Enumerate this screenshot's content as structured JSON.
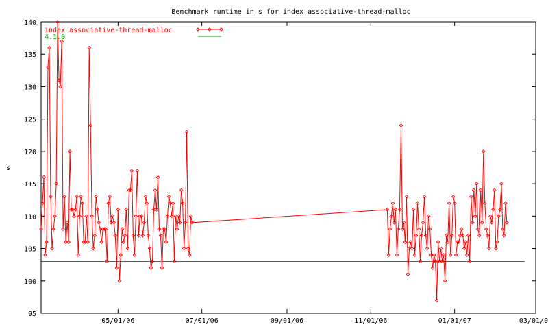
{
  "chart_data": {
    "type": "line",
    "title": "Benchmark runtime in s for index associative-thread-malloc",
    "xlabel": "",
    "ylabel": "s",
    "ylim": [
      95,
      140
    ],
    "xlim": [
      "2006-03-06",
      "2007-03-01"
    ],
    "y_ticks": [
      "95",
      "100",
      "105",
      "110",
      "115",
      "120",
      "125",
      "130",
      "135",
      "140"
    ],
    "x_ticks": [
      {
        "date": "2006-05-01",
        "label": "05/01/06"
      },
      {
        "date": "2006-07-01",
        "label": "07/01/06"
      },
      {
        "date": "2006-09-01",
        "label": "09/01/06"
      },
      {
        "date": "2006-11-01",
        "label": "11/01/06"
      },
      {
        "date": "2007-01-01",
        "label": "01/01/07"
      },
      {
        "date": "2007-03-01",
        "label": "03/01/07"
      }
    ],
    "grid": false,
    "legend_position": "top-left",
    "series": [
      {
        "name": "index associative-thread-malloc",
        "color": "#ff0000",
        "marker": "diamond",
        "points": [
          [
            "2006-03-06",
            108
          ],
          [
            "2006-03-07",
            112
          ],
          [
            "2006-03-08",
            116
          ],
          [
            "2006-03-09",
            104
          ],
          [
            "2006-03-10",
            106
          ],
          [
            "2006-03-11",
            133
          ],
          [
            "2006-03-12",
            136
          ],
          [
            "2006-03-13",
            113
          ],
          [
            "2006-03-14",
            105
          ],
          [
            "2006-03-15",
            108
          ],
          [
            "2006-03-16",
            110
          ],
          [
            "2006-03-17",
            115
          ],
          [
            "2006-03-18",
            140
          ],
          [
            "2006-03-19",
            131
          ],
          [
            "2006-03-20",
            130
          ],
          [
            "2006-03-21",
            137
          ],
          [
            "2006-03-22",
            108
          ],
          [
            "2006-03-23",
            113
          ],
          [
            "2006-03-24",
            106
          ],
          [
            "2006-03-25",
            109
          ],
          [
            "2006-03-26",
            106
          ],
          [
            "2006-03-27",
            120
          ],
          [
            "2006-03-28",
            111
          ],
          [
            "2006-03-29",
            111
          ],
          [
            "2006-03-30",
            110
          ],
          [
            "2006-03-31",
            111
          ],
          [
            "2006-04-01",
            113
          ],
          [
            "2006-04-02",
            104
          ],
          [
            "2006-04-03",
            110
          ],
          [
            "2006-04-04",
            113
          ],
          [
            "2006-04-05",
            112
          ],
          [
            "2006-04-06",
            106
          ],
          [
            "2006-04-07",
            106
          ],
          [
            "2006-04-08",
            110
          ],
          [
            "2006-04-09",
            106
          ],
          [
            "2006-04-10",
            136
          ],
          [
            "2006-04-11",
            124
          ],
          [
            "2006-04-12",
            110
          ],
          [
            "2006-04-13",
            105
          ],
          [
            "2006-04-14",
            107
          ],
          [
            "2006-04-15",
            113
          ],
          [
            "2006-04-16",
            111
          ],
          [
            "2006-04-17",
            109
          ],
          [
            "2006-04-18",
            108
          ],
          [
            "2006-04-19",
            106
          ],
          [
            "2006-04-20",
            108
          ],
          [
            "2006-04-21",
            108
          ],
          [
            "2006-04-22",
            108
          ],
          [
            "2006-04-23",
            103
          ],
          [
            "2006-04-24",
            112
          ],
          [
            "2006-04-25",
            113
          ],
          [
            "2006-04-26",
            109
          ],
          [
            "2006-04-27",
            110
          ],
          [
            "2006-04-28",
            109
          ],
          [
            "2006-04-29",
            107
          ],
          [
            "2006-04-30",
            102
          ],
          [
            "2006-05-01",
            111
          ],
          [
            "2006-05-02",
            100
          ],
          [
            "2006-05-03",
            104
          ],
          [
            "2006-05-04",
            108
          ],
          [
            "2006-05-05",
            106
          ],
          [
            "2006-05-06",
            107
          ],
          [
            "2006-05-07",
            111
          ],
          [
            "2006-05-08",
            105
          ],
          [
            "2006-05-09",
            114
          ],
          [
            "2006-05-10",
            114
          ],
          [
            "2006-05-11",
            117
          ],
          [
            "2006-05-12",
            107
          ],
          [
            "2006-05-13",
            104
          ],
          [
            "2006-05-14",
            110
          ],
          [
            "2006-05-15",
            117
          ],
          [
            "2006-05-16",
            107
          ],
          [
            "2006-05-17",
            110
          ],
          [
            "2006-05-18",
            110
          ],
          [
            "2006-05-19",
            107
          ],
          [
            "2006-05-20",
            109
          ],
          [
            "2006-05-21",
            113
          ],
          [
            "2006-05-22",
            112
          ],
          [
            "2006-05-23",
            107
          ],
          [
            "2006-05-24",
            105
          ],
          [
            "2006-05-25",
            102
          ],
          [
            "2006-05-26",
            103
          ],
          [
            "2006-05-27",
            111
          ],
          [
            "2006-05-28",
            114
          ],
          [
            "2006-05-29",
            111
          ],
          [
            "2006-05-30",
            116
          ],
          [
            "2006-05-31",
            108
          ],
          [
            "2006-06-01",
            107
          ],
          [
            "2006-06-02",
            102
          ],
          [
            "2006-06-03",
            108
          ],
          [
            "2006-06-04",
            108
          ],
          [
            "2006-06-05",
            106
          ],
          [
            "2006-06-06",
            110
          ],
          [
            "2006-06-07",
            113
          ],
          [
            "2006-06-08",
            112
          ],
          [
            "2006-06-09",
            110
          ],
          [
            "2006-06-10",
            112
          ],
          [
            "2006-06-11",
            103
          ],
          [
            "2006-06-12",
            110
          ],
          [
            "2006-06-13",
            108
          ],
          [
            "2006-06-14",
            110
          ],
          [
            "2006-06-15",
            109
          ],
          [
            "2006-06-16",
            114
          ],
          [
            "2006-06-17",
            112
          ],
          [
            "2006-06-18",
            105
          ],
          [
            "2006-06-19",
            109
          ],
          [
            "2006-06-20",
            123
          ],
          [
            "2006-06-21",
            105
          ],
          [
            "2006-06-22",
            104
          ],
          [
            "2006-06-23",
            110
          ],
          [
            "2006-06-24",
            109
          ],
          [
            "2006-11-13",
            111
          ],
          [
            "2006-11-14",
            104
          ],
          [
            "2006-11-15",
            108
          ],
          [
            "2006-11-16",
            110
          ],
          [
            "2006-11-17",
            112
          ],
          [
            "2006-11-18",
            109
          ],
          [
            "2006-11-19",
            111
          ],
          [
            "2006-11-20",
            104
          ],
          [
            "2006-11-21",
            108
          ],
          [
            "2006-11-22",
            111
          ],
          [
            "2006-11-23",
            124
          ],
          [
            "2006-11-24",
            108
          ],
          [
            "2006-11-25",
            109
          ],
          [
            "2006-11-26",
            106
          ],
          [
            "2006-11-27",
            113
          ],
          [
            "2006-11-28",
            101
          ],
          [
            "2006-11-29",
            105
          ],
          [
            "2006-11-30",
            106
          ],
          [
            "2006-12-01",
            105
          ],
          [
            "2006-12-02",
            111
          ],
          [
            "2006-12-03",
            104
          ],
          [
            "2006-12-04",
            107
          ],
          [
            "2006-12-05",
            112
          ],
          [
            "2006-12-06",
            108
          ],
          [
            "2006-12-07",
            103
          ],
          [
            "2006-12-08",
            107
          ],
          [
            "2006-12-09",
            109
          ],
          [
            "2006-12-10",
            113
          ],
          [
            "2006-12-11",
            107
          ],
          [
            "2006-12-12",
            105
          ],
          [
            "2006-12-13",
            110
          ],
          [
            "2006-12-14",
            108
          ],
          [
            "2006-12-15",
            104
          ],
          [
            "2006-12-16",
            102
          ],
          [
            "2006-12-17",
            104
          ],
          [
            "2006-12-18",
            103
          ],
          [
            "2006-12-19",
            97
          ],
          [
            "2006-12-20",
            106
          ],
          [
            "2006-12-21",
            103
          ],
          [
            "2006-12-22",
            105
          ],
          [
            "2006-12-23",
            103
          ],
          [
            "2006-12-24",
            104
          ],
          [
            "2006-12-25",
            100
          ],
          [
            "2006-12-26",
            107
          ],
          [
            "2006-12-27",
            106
          ],
          [
            "2006-12-28",
            112
          ],
          [
            "2006-12-29",
            104
          ],
          [
            "2006-12-30",
            107
          ],
          [
            "2006-12-31",
            113
          ],
          [
            "2007-01-01",
            112
          ],
          [
            "2007-01-02",
            104
          ],
          [
            "2007-01-03",
            106
          ],
          [
            "2007-01-04",
            106
          ],
          [
            "2007-01-05",
            107
          ],
          [
            "2007-01-06",
            108
          ],
          [
            "2007-01-07",
            107
          ],
          [
            "2007-01-08",
            105
          ],
          [
            "2007-01-09",
            106
          ],
          [
            "2007-01-10",
            104
          ],
          [
            "2007-01-11",
            107
          ],
          [
            "2007-01-12",
            103
          ],
          [
            "2007-01-13",
            113
          ],
          [
            "2007-01-14",
            109
          ],
          [
            "2007-01-15",
            114
          ],
          [
            "2007-01-16",
            110
          ],
          [
            "2007-01-17",
            115
          ],
          [
            "2007-01-18",
            108
          ],
          [
            "2007-01-19",
            107
          ],
          [
            "2007-01-20",
            114
          ],
          [
            "2007-01-21",
            109
          ],
          [
            "2007-01-22",
            120
          ],
          [
            "2007-01-23",
            112
          ],
          [
            "2007-01-24",
            108
          ],
          [
            "2007-01-25",
            107
          ],
          [
            "2007-01-26",
            105
          ],
          [
            "2007-01-27",
            110
          ],
          [
            "2007-01-28",
            109
          ],
          [
            "2007-01-29",
            111
          ],
          [
            "2007-01-30",
            114
          ],
          [
            "2007-01-31",
            105
          ],
          [
            "2007-02-01",
            106
          ],
          [
            "2007-02-02",
            110
          ],
          [
            "2007-02-03",
            111
          ],
          [
            "2007-02-04",
            115
          ],
          [
            "2007-02-05",
            108
          ],
          [
            "2007-02-06",
            107
          ],
          [
            "2007-02-07",
            112
          ],
          [
            "2007-02-08",
            109
          ]
        ]
      },
      {
        "name": "4.1.0",
        "color": "#00a000",
        "constant": 103,
        "x_range": [
          "2006-03-06",
          "2007-02-21"
        ]
      }
    ]
  }
}
